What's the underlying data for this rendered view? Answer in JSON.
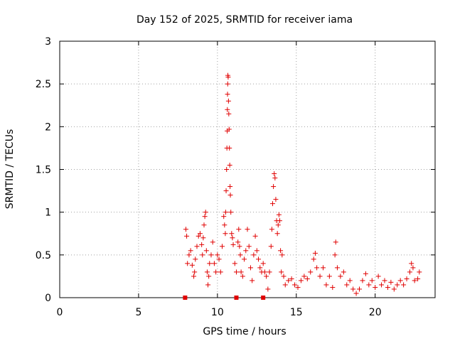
{
  "chart_data": {
    "type": "scatter",
    "title": "Day 152 of 2025, SRMTID for receiver iama",
    "xlabel": "GPS time / hours",
    "ylabel": "SRMTID / TECUs",
    "xlim": [
      0,
      23.8
    ],
    "ylim": [
      0,
      3
    ],
    "xticks": [
      0,
      5,
      10,
      15,
      20
    ],
    "xtick_labels": [
      "0",
      "5",
      "10",
      "15",
      "20"
    ],
    "yticks": [
      0,
      0.5,
      1,
      1.5,
      2,
      2.5,
      3
    ],
    "ytick_labels": [
      "0",
      "0.5",
      "1",
      "1.5",
      "2",
      "2.5",
      "3"
    ],
    "grid": true,
    "marker": "+",
    "color": "#e00000",
    "series": [
      {
        "name": "iama",
        "points": [
          [
            7.95,
            0.0
          ],
          [
            11.2,
            0.0
          ],
          [
            12.9,
            0.0
          ],
          [
            8.0,
            0.8
          ],
          [
            8.05,
            0.72
          ],
          [
            8.1,
            0.4
          ],
          [
            8.2,
            0.5
          ],
          [
            8.3,
            0.55
          ],
          [
            8.4,
            0.38
          ],
          [
            8.5,
            0.25
          ],
          [
            8.55,
            0.3
          ],
          [
            8.6,
            0.45
          ],
          [
            8.7,
            0.6
          ],
          [
            8.8,
            0.72
          ],
          [
            8.9,
            0.75
          ],
          [
            9.0,
            0.62
          ],
          [
            9.05,
            0.5
          ],
          [
            9.1,
            0.7
          ],
          [
            9.15,
            0.85
          ],
          [
            9.2,
            0.95
          ],
          [
            9.25,
            1.0
          ],
          [
            9.3,
            0.55
          ],
          [
            9.35,
            0.3
          ],
          [
            9.4,
            0.15
          ],
          [
            9.45,
            0.25
          ],
          [
            9.5,
            0.4
          ],
          [
            9.6,
            0.5
          ],
          [
            9.7,
            0.65
          ],
          [
            9.8,
            0.4
          ],
          [
            9.9,
            0.3
          ],
          [
            10.0,
            0.5
          ],
          [
            10.1,
            0.45
          ],
          [
            10.2,
            0.3
          ],
          [
            10.3,
            0.6
          ],
          [
            10.4,
            0.95
          ],
          [
            10.45,
            0.85
          ],
          [
            10.5,
            0.75
          ],
          [
            10.52,
            1.0
          ],
          [
            10.55,
            1.25
          ],
          [
            10.58,
            1.5
          ],
          [
            10.6,
            1.75
          ],
          [
            10.62,
            1.95
          ],
          [
            10.63,
            2.2
          ],
          [
            10.64,
            2.38
          ],
          [
            10.65,
            2.5
          ],
          [
            10.66,
            2.6
          ],
          [
            10.68,
            2.58
          ],
          [
            10.7,
            2.3
          ],
          [
            10.72,
            2.15
          ],
          [
            10.74,
            1.97
          ],
          [
            10.76,
            1.75
          ],
          [
            10.78,
            1.55
          ],
          [
            10.8,
            1.3
          ],
          [
            10.82,
            1.2
          ],
          [
            10.85,
            1.0
          ],
          [
            10.9,
            0.75
          ],
          [
            10.95,
            0.7
          ],
          [
            11.0,
            0.62
          ],
          [
            11.1,
            0.4
          ],
          [
            11.2,
            0.3
          ],
          [
            11.3,
            0.65
          ],
          [
            11.35,
            0.8
          ],
          [
            11.4,
            0.6
          ],
          [
            11.45,
            0.5
          ],
          [
            11.5,
            0.3
          ],
          [
            11.6,
            0.25
          ],
          [
            11.7,
            0.45
          ],
          [
            11.8,
            0.55
          ],
          [
            11.9,
            0.8
          ],
          [
            12.0,
            0.6
          ],
          [
            12.1,
            0.35
          ],
          [
            12.2,
            0.2
          ],
          [
            12.3,
            0.5
          ],
          [
            12.4,
            0.72
          ],
          [
            12.5,
            0.55
          ],
          [
            12.6,
            0.45
          ],
          [
            12.7,
            0.35
          ],
          [
            12.8,
            0.3
          ],
          [
            12.9,
            0.4
          ],
          [
            13.0,
            0.3
          ],
          [
            13.1,
            0.25
          ],
          [
            13.2,
            0.1
          ],
          [
            13.3,
            0.3
          ],
          [
            13.4,
            0.6
          ],
          [
            13.45,
            0.8
          ],
          [
            13.5,
            1.1
          ],
          [
            13.55,
            1.3
          ],
          [
            13.6,
            1.45
          ],
          [
            13.65,
            1.4
          ],
          [
            13.7,
            1.15
          ],
          [
            13.75,
            0.9
          ],
          [
            13.8,
            0.75
          ],
          [
            13.85,
            0.85
          ],
          [
            13.9,
            0.97
          ],
          [
            13.95,
            0.9
          ],
          [
            14.0,
            0.55
          ],
          [
            14.05,
            0.3
          ],
          [
            14.1,
            0.5
          ],
          [
            14.2,
            0.25
          ],
          [
            14.3,
            0.15
          ],
          [
            14.5,
            0.2
          ],
          [
            14.7,
            0.22
          ],
          [
            14.9,
            0.15
          ],
          [
            15.1,
            0.12
          ],
          [
            15.3,
            0.2
          ],
          [
            15.5,
            0.25
          ],
          [
            15.7,
            0.22
          ],
          [
            15.9,
            0.3
          ],
          [
            16.1,
            0.45
          ],
          [
            16.2,
            0.52
          ],
          [
            16.3,
            0.35
          ],
          [
            16.5,
            0.25
          ],
          [
            16.7,
            0.35
          ],
          [
            16.9,
            0.15
          ],
          [
            17.1,
            0.25
          ],
          [
            17.3,
            0.12
          ],
          [
            17.45,
            0.5
          ],
          [
            17.5,
            0.65
          ],
          [
            17.6,
            0.35
          ],
          [
            17.8,
            0.25
          ],
          [
            18.0,
            0.3
          ],
          [
            18.2,
            0.15
          ],
          [
            18.4,
            0.2
          ],
          [
            18.6,
            0.1
          ],
          [
            18.8,
            0.05
          ],
          [
            19.0,
            0.1
          ],
          [
            19.2,
            0.2
          ],
          [
            19.4,
            0.28
          ],
          [
            19.6,
            0.15
          ],
          [
            19.8,
            0.2
          ],
          [
            20.0,
            0.12
          ],
          [
            20.2,
            0.25
          ],
          [
            20.4,
            0.15
          ],
          [
            20.6,
            0.2
          ],
          [
            20.8,
            0.12
          ],
          [
            21.0,
            0.18
          ],
          [
            21.2,
            0.1
          ],
          [
            21.4,
            0.15
          ],
          [
            21.6,
            0.2
          ],
          [
            21.8,
            0.15
          ],
          [
            22.0,
            0.22
          ],
          [
            22.2,
            0.3
          ],
          [
            22.3,
            0.4
          ],
          [
            22.4,
            0.35
          ],
          [
            22.5,
            0.2
          ],
          [
            22.7,
            0.22
          ],
          [
            22.8,
            0.3
          ]
        ]
      }
    ]
  }
}
